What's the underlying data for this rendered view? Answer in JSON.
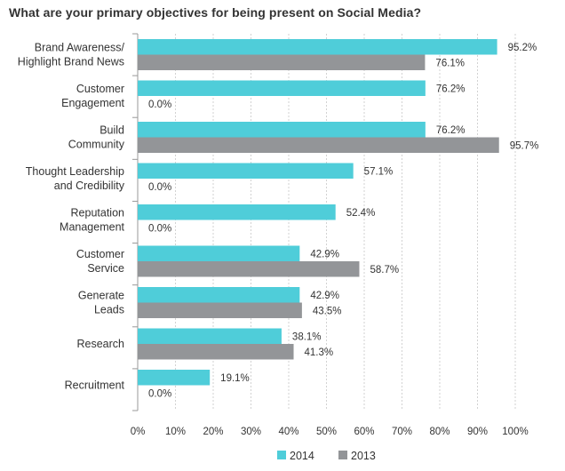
{
  "chart_data": {
    "type": "bar",
    "orientation": "horizontal",
    "title": "What are your primary objectives for being present on Social Media?",
    "categories": [
      [
        "Brand Awareness/",
        "Highlight Brand News"
      ],
      [
        "Customer",
        "Engagement"
      ],
      [
        "Build",
        "Community"
      ],
      [
        "Thought Leadership",
        "and Credibility"
      ],
      [
        "Reputation",
        "Management"
      ],
      [
        "Customer",
        "Service"
      ],
      [
        "Generate",
        "Leads"
      ],
      [
        "Research"
      ],
      [
        "Recruitment"
      ]
    ],
    "series": [
      {
        "name": "2014",
        "color": "#4fcdd9",
        "values": [
          95.2,
          76.2,
          76.2,
          57.1,
          52.4,
          42.9,
          42.9,
          38.1,
          19.1
        ],
        "labels": [
          "95.2%",
          "76.2%",
          "76.2%",
          "57.1%",
          "52.4%",
          "42.9%",
          "42.9%",
          "38.1%",
          "19.1%"
        ]
      },
      {
        "name": "2013",
        "color": "#939598",
        "values": [
          76.1,
          0.0,
          95.7,
          0.0,
          0.0,
          58.7,
          43.5,
          41.3,
          0.0
        ],
        "labels": [
          "76.1%",
          "0.0%",
          "95.7%",
          "0.0%",
          "0.0%",
          "58.7%",
          "43.5%",
          "41.3%",
          "0.0%"
        ]
      }
    ],
    "x_ticks": [
      "0%",
      "10%",
      "20%",
      "30%",
      "40%",
      "50%",
      "60%",
      "70%",
      "80%",
      "90%",
      "100%"
    ],
    "xlim": [
      0,
      100
    ],
    "grid": true,
    "legend_position": "bottom-center"
  }
}
